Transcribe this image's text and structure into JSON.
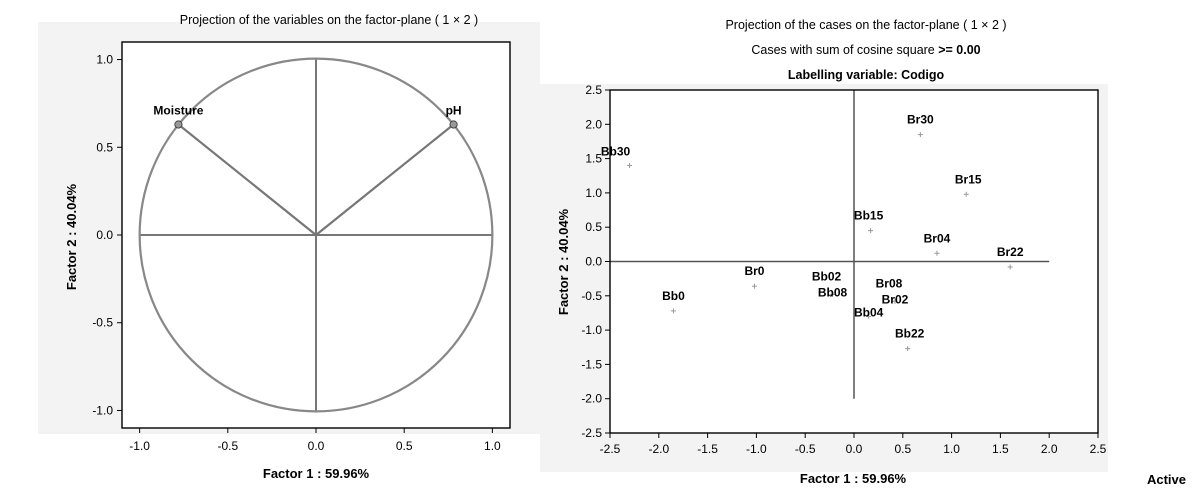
{
  "footer": {
    "active_label": "Active"
  },
  "chart_data": [
    {
      "type": "scatter",
      "title": "Projection of the variables on the factor-plane ( 1 × 2 )",
      "xlabel": "Factor 1 : 59.96%",
      "ylabel": "Factor 2 : 40.04%",
      "xlim": [
        -1.1,
        1.1
      ],
      "ylim": [
        -1.1,
        1.1
      ],
      "xticks": [
        "-1.0",
        "-0.5",
        "0.0",
        "0.5",
        "1.0"
      ],
      "yticks": [
        "1.0",
        "0.5",
        "0.0",
        "-0.5",
        "-1.0"
      ],
      "xtick_values": [
        -1.0,
        -0.5,
        0.0,
        0.5,
        1.0
      ],
      "ytick_values": [
        1.0,
        0.5,
        0.0,
        -0.5,
        -1.0
      ],
      "unit_circle": true,
      "grid": false,
      "points": [
        {
          "label": "Moisture",
          "x": -0.78,
          "y": 0.63
        },
        {
          "label": "pH",
          "x": 0.78,
          "y": 0.63
        }
      ]
    },
    {
      "type": "scatter",
      "title": "Projection of the cases on the factor-plane ( 1 × 2 )",
      "subtitle_prefix": "Cases with sum of cosine square ",
      "subtitle_value": ">= 0.00",
      "subtitle2": "Labelling variable: Codigo",
      "xlabel": "Factor 1 : 59.96%",
      "ylabel": "Factor 2 : 40.04%",
      "xlim": [
        -2.5,
        2.5
      ],
      "ylim": [
        -2.5,
        2.5
      ],
      "xticks": [
        "-2.5",
        "-2.0",
        "-1.5",
        "-1.0",
        "-0.5",
        "0.0",
        "0.5",
        "1.0",
        "1.5",
        "2.0",
        "2.5"
      ],
      "yticks": [
        "2.5",
        "2.0",
        "1.5",
        "1.0",
        "0.5",
        "0.0",
        "-0.5",
        "-1.0",
        "-1.5",
        "-2.0",
        "-2.5"
      ],
      "xtick_values": [
        -2.5,
        -2.0,
        -1.5,
        -1.0,
        -0.5,
        0.0,
        0.5,
        1.0,
        1.5,
        2.0,
        2.5
      ],
      "ytick_values": [
        2.5,
        2.0,
        1.5,
        1.0,
        0.5,
        0.0,
        -0.5,
        -1.0,
        -1.5,
        -2.0,
        -2.5
      ],
      "grid": false,
      "points": [
        {
          "label": "Bb30",
          "x": -2.3,
          "y": 1.4
        },
        {
          "label": "Br30",
          "x": 0.68,
          "y": 1.85
        },
        {
          "label": "Br15",
          "x": 1.15,
          "y": 0.98
        },
        {
          "label": "Bb15",
          "x": 0.17,
          "y": 0.45
        },
        {
          "label": "Br04",
          "x": 0.85,
          "y": 0.12
        },
        {
          "label": "Br22",
          "x": 1.6,
          "y": -0.08
        },
        {
          "label": "Br0",
          "x": -1.02,
          "y": -0.36
        },
        {
          "label": "Bb02",
          "x": -0.22,
          "y": -0.48
        },
        {
          "label": "Bb08",
          "x": -0.22,
          "y": -0.48
        },
        {
          "label": "Br08",
          "x": 0.42,
          "y": -0.58
        },
        {
          "label": "Br02",
          "x": 0.42,
          "y": -0.58
        },
        {
          "label": "Bb04",
          "x": 0.15,
          "y": -0.8
        },
        {
          "label": "Bb0",
          "x": -1.85,
          "y": -0.72
        },
        {
          "label": "Bb22",
          "x": 0.55,
          "y": -1.27
        }
      ]
    }
  ]
}
